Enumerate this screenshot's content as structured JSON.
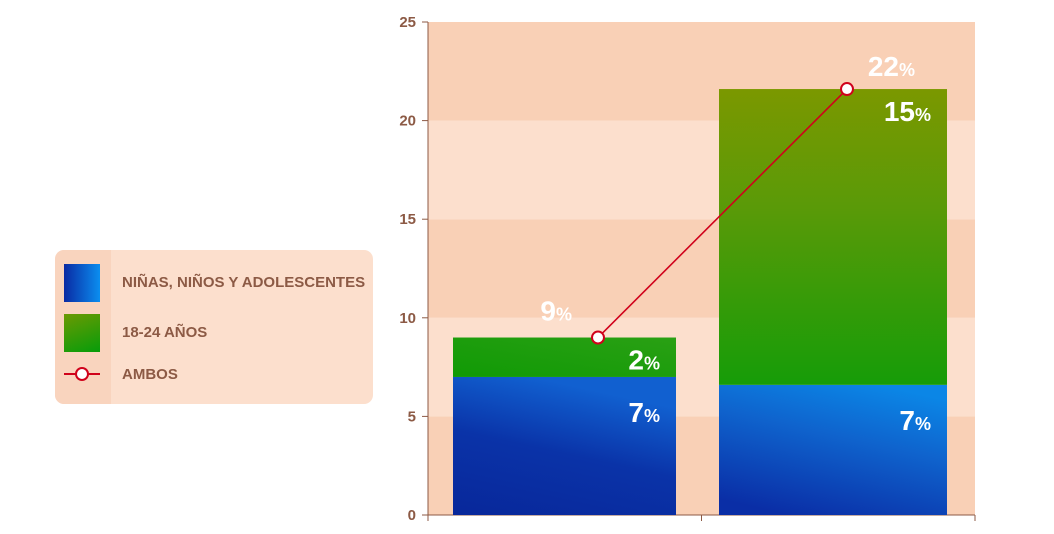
{
  "chart_data": {
    "type": "bar",
    "stacked": true,
    "categories": [
      "",
      ""
    ],
    "ylim": [
      0,
      25
    ],
    "yticks": [
      0,
      5,
      10,
      15,
      20,
      25
    ],
    "grid": true,
    "legend_position": "left",
    "series": [
      {
        "name": "NIÑAS, NIÑOS Y ADOLESCENTES",
        "type": "bar",
        "values": [
          7,
          6.6
        ],
        "labels": [
          "7",
          "7"
        ],
        "color": "#1a3fb5"
      },
      {
        "name": "18-24 AÑOS",
        "type": "bar",
        "values": [
          2,
          15
        ],
        "labels": [
          "2",
          "15"
        ],
        "color": "#3d9a1a"
      },
      {
        "name": "AMBOS",
        "type": "line",
        "values": [
          9,
          21.6
        ],
        "labels": [
          "9",
          "22"
        ],
        "color": "#d0021b"
      }
    ],
    "percent_sign": "%"
  },
  "colors": {
    "axis_text": "#8c5a45",
    "band_dark": "#f9d0b6",
    "band_light": "#fcdfcd",
    "line": "#d0021b",
    "label_white": "#ffffff"
  }
}
